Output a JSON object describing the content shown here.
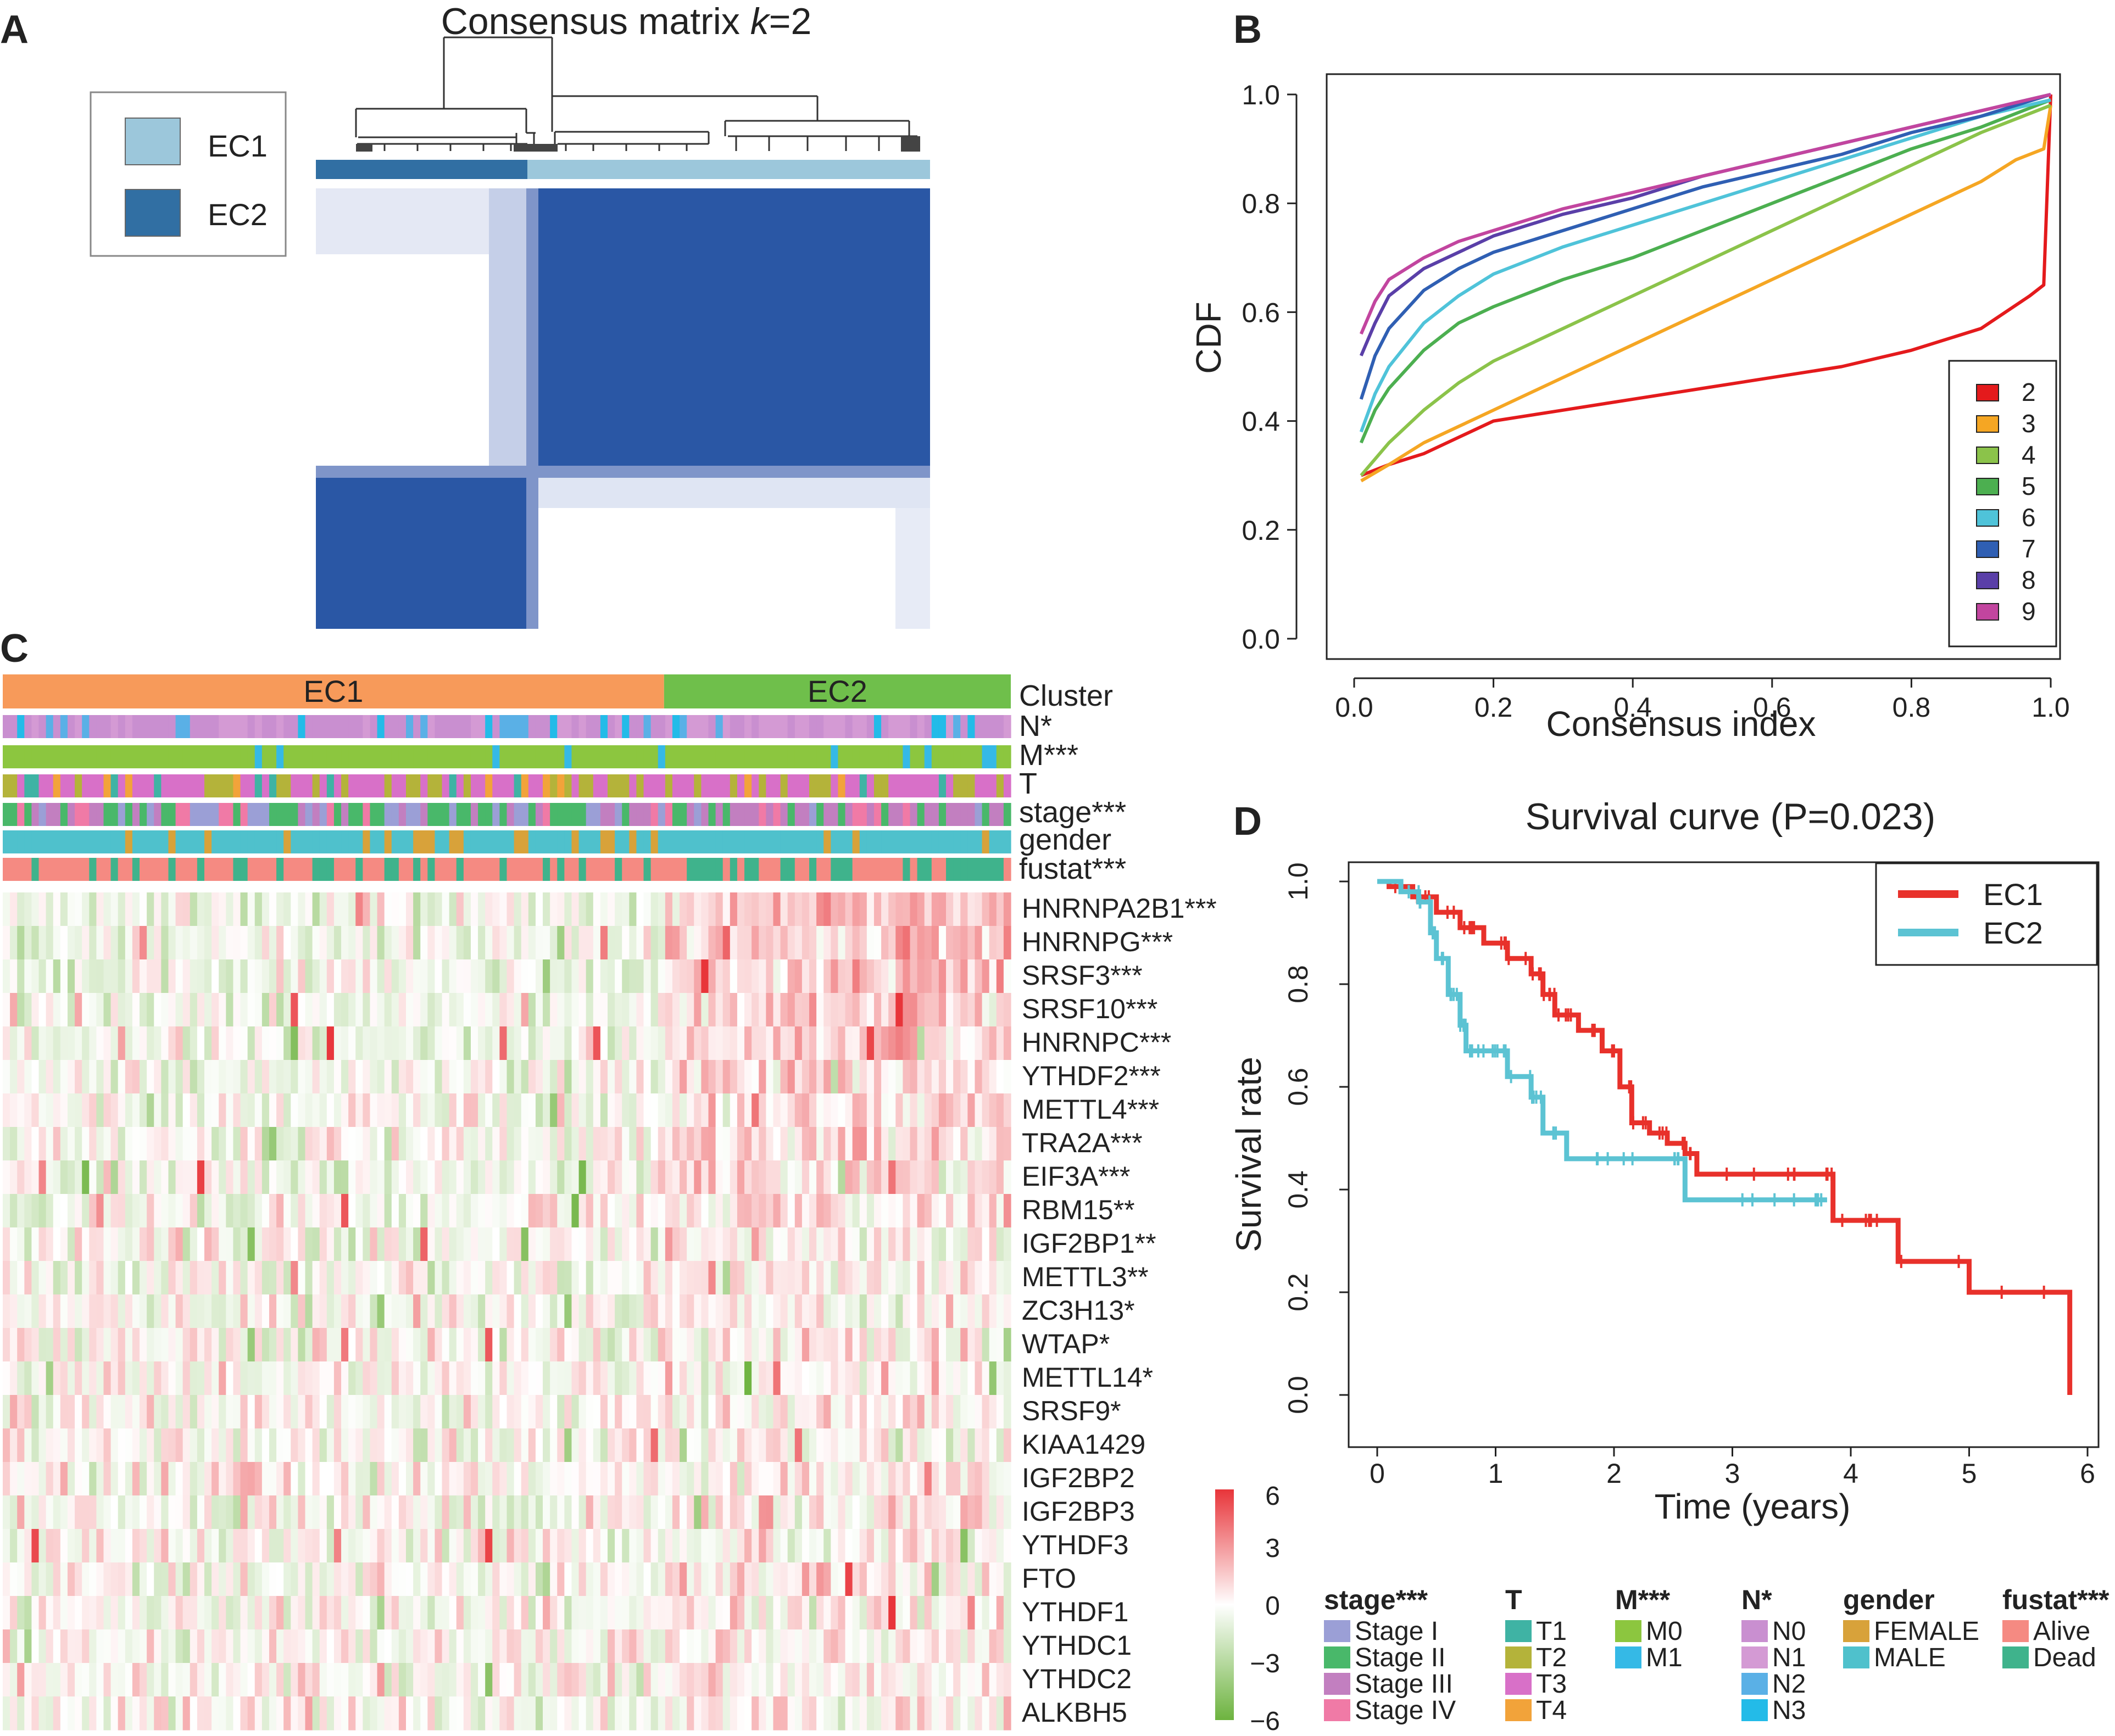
{
  "figure": {
    "panel_labels": [
      "A",
      "B",
      "C",
      "D"
    ]
  },
  "chart_data": [
    {
      "panel": "A",
      "type": "heatmap",
      "title_prefix": "Consensus matrix ",
      "title_k": "k",
      "title_suffix": "=2",
      "legend": [
        {
          "label": "EC1",
          "color": "#9cc7db"
        },
        {
          "label": "EC2",
          "color": "#316fa3"
        }
      ],
      "cluster_bar": [
        {
          "cluster": "EC2",
          "fraction": 0.345,
          "color": "#316fa3"
        },
        {
          "cluster": "EC1",
          "fraction": 0.655,
          "color": "#9cc7db"
        }
      ],
      "block_color": "#2a57a5"
    },
    {
      "panel": "B",
      "type": "line",
      "xlabel": "Consensus index",
      "ylabel": "CDF",
      "xlim": [
        0,
        1
      ],
      "ylim": [
        0,
        1
      ],
      "xticks": [
        "0.0",
        "0.2",
        "0.4",
        "0.6",
        "0.8",
        "1.0"
      ],
      "yticks": [
        "0.0",
        "0.2",
        "0.4",
        "0.6",
        "0.8",
        "1.0"
      ],
      "series": [
        {
          "name": "2",
          "color": "#e41a1c",
          "x": [
            0.01,
            0.05,
            0.1,
            0.15,
            0.2,
            0.3,
            0.4,
            0.5,
            0.6,
            0.7,
            0.8,
            0.9,
            0.97,
            0.99,
            1.0
          ],
          "y": [
            0.3,
            0.32,
            0.34,
            0.37,
            0.4,
            0.42,
            0.44,
            0.46,
            0.48,
            0.5,
            0.53,
            0.57,
            0.63,
            0.65,
            1.0
          ]
        },
        {
          "name": "3",
          "color": "#f5a623",
          "x": [
            0.01,
            0.05,
            0.1,
            0.15,
            0.2,
            0.3,
            0.4,
            0.5,
            0.6,
            0.7,
            0.8,
            0.9,
            0.95,
            0.99,
            1.0
          ],
          "y": [
            0.29,
            0.32,
            0.36,
            0.39,
            0.42,
            0.48,
            0.54,
            0.6,
            0.66,
            0.72,
            0.78,
            0.84,
            0.88,
            0.9,
            0.98
          ]
        },
        {
          "name": "4",
          "color": "#8bc34a",
          "x": [
            0.01,
            0.03,
            0.05,
            0.1,
            0.15,
            0.2,
            0.3,
            0.4,
            0.5,
            0.6,
            0.7,
            0.8,
            0.9,
            1.0
          ],
          "y": [
            0.3,
            0.33,
            0.36,
            0.42,
            0.47,
            0.51,
            0.57,
            0.63,
            0.69,
            0.75,
            0.81,
            0.87,
            0.93,
            0.98
          ]
        },
        {
          "name": "5",
          "color": "#4caf50",
          "x": [
            0.01,
            0.03,
            0.05,
            0.1,
            0.15,
            0.2,
            0.3,
            0.4,
            0.5,
            0.6,
            0.7,
            0.8,
            0.9,
            1.0
          ],
          "y": [
            0.36,
            0.42,
            0.46,
            0.53,
            0.58,
            0.61,
            0.66,
            0.7,
            0.75,
            0.8,
            0.85,
            0.9,
            0.94,
            0.99
          ]
        },
        {
          "name": "6",
          "color": "#4fc3d9",
          "x": [
            0.01,
            0.03,
            0.05,
            0.1,
            0.15,
            0.2,
            0.3,
            0.4,
            0.5,
            0.6,
            0.7,
            0.8,
            0.9,
            1.0
          ],
          "y": [
            0.38,
            0.45,
            0.5,
            0.58,
            0.63,
            0.67,
            0.72,
            0.76,
            0.8,
            0.84,
            0.88,
            0.92,
            0.96,
            0.99
          ]
        },
        {
          "name": "7",
          "color": "#2f5fb3",
          "x": [
            0.01,
            0.03,
            0.05,
            0.1,
            0.15,
            0.2,
            0.3,
            0.4,
            0.5,
            0.6,
            0.7,
            0.8,
            0.9,
            1.0
          ],
          "y": [
            0.44,
            0.52,
            0.57,
            0.64,
            0.68,
            0.71,
            0.75,
            0.79,
            0.83,
            0.86,
            0.89,
            0.93,
            0.96,
            1.0
          ]
        },
        {
          "name": "8",
          "color": "#5a3fa8",
          "x": [
            0.01,
            0.03,
            0.05,
            0.1,
            0.15,
            0.2,
            0.3,
            0.4,
            0.5,
            0.6,
            0.7,
            0.8,
            0.9,
            1.0
          ],
          "y": [
            0.52,
            0.58,
            0.63,
            0.68,
            0.71,
            0.74,
            0.78,
            0.81,
            0.85,
            0.88,
            0.91,
            0.94,
            0.97,
            1.0
          ]
        },
        {
          "name": "9",
          "color": "#c2459f",
          "x": [
            0.01,
            0.03,
            0.05,
            0.1,
            0.15,
            0.2,
            0.3,
            0.4,
            0.5,
            0.6,
            0.7,
            0.8,
            0.9,
            1.0
          ],
          "y": [
            0.56,
            0.62,
            0.66,
            0.7,
            0.73,
            0.75,
            0.79,
            0.82,
            0.85,
            0.88,
            0.91,
            0.94,
            0.97,
            1.0
          ]
        }
      ]
    },
    {
      "panel": "C",
      "type": "heatmap",
      "clusters": [
        {
          "label": "EC1",
          "fraction": 0.656,
          "color": "#f79a5a"
        },
        {
          "label": "EC2",
          "fraction": 0.344,
          "color": "#6fbf4b"
        }
      ],
      "annotation_rows": [
        "Cluster",
        "N*",
        "M***",
        "T",
        "stage***",
        "gender",
        "fustat***"
      ],
      "genes": [
        "HNRNPA2B1***",
        "HNRNPG***",
        "SRSF3***",
        "SRSF10***",
        "HNRNPC***",
        "YTHDF2***",
        "METTL4***",
        "TRA2A***",
        "EIF3A***",
        "RBM15**",
        "IGF2BP1**",
        "METTL3**",
        "ZC3H13*",
        "WTAP*",
        "METTL14*",
        "SRSF9*",
        "KIAA1429",
        "IGF2BP2",
        "IGF2BP3",
        "YTHDF3",
        "FTO",
        "YTHDF1",
        "YTHDC1",
        "YTHDC2",
        "ALKBH5"
      ],
      "colorbar": {
        "min": -6,
        "max": 6,
        "ticks": [
          "6",
          "3",
          "0",
          "−3",
          "−6"
        ],
        "low_color": "#6db33f",
        "mid_color": "#ffffff",
        "high_color": "#e8353a"
      },
      "legends": [
        {
          "title": "stage***",
          "items": [
            {
              "label": "Stage I",
              "color": "#9b9fd6"
            },
            {
              "label": "Stage II",
              "color": "#49b86a"
            },
            {
              "label": "Stage III",
              "color": "#c27fc0"
            },
            {
              "label": "Stage IV",
              "color": "#f07aa6"
            }
          ]
        },
        {
          "title": "T",
          "items": [
            {
              "label": "T1",
              "color": "#3fb3a4"
            },
            {
              "label": "T2",
              "color": "#b4b33a"
            },
            {
              "label": "T3",
              "color": "#d870c8"
            },
            {
              "label": "T4",
              "color": "#f2a33a"
            }
          ]
        },
        {
          "title": "M***",
          "items": [
            {
              "label": "M0",
              "color": "#8cc63f"
            },
            {
              "label": "M1",
              "color": "#35b9e6"
            }
          ]
        },
        {
          "title": "N*",
          "items": [
            {
              "label": "N0",
              "color": "#c98fd0"
            },
            {
              "label": "N1",
              "color": "#d49ad4"
            },
            {
              "label": "N2",
              "color": "#5ab0e6"
            },
            {
              "label": "N3",
              "color": "#23bbe8"
            }
          ]
        },
        {
          "title": "gender",
          "items": [
            {
              "label": "FEMALE",
              "color": "#d8a23a"
            },
            {
              "label": "MALE",
              "color": "#4fc1cc"
            }
          ]
        },
        {
          "title": "fustat***",
          "items": [
            {
              "label": "Alive",
              "color": "#f58a82"
            },
            {
              "label": "Dead",
              "color": "#3fb38c"
            }
          ]
        }
      ]
    },
    {
      "panel": "D",
      "type": "line",
      "title": "Survival curve (P=0.023)",
      "xlabel": "Time (years)",
      "ylabel": "Survival rate",
      "xlim": [
        0,
        6
      ],
      "ylim": [
        0,
        1
      ],
      "xticks": [
        "0",
        "1",
        "2",
        "3",
        "4",
        "5",
        "6"
      ],
      "yticks": [
        "0.0",
        "0.2",
        "0.4",
        "0.6",
        "0.8",
        "1.0"
      ],
      "series": [
        {
          "name": "EC1",
          "color": "#e8312b",
          "x": [
            0,
            0.1,
            0.3,
            0.5,
            0.7,
            0.9,
            1.1,
            1.3,
            1.4,
            1.5,
            1.7,
            1.9,
            2.05,
            2.15,
            2.3,
            2.45,
            2.6,
            2.7,
            3.75,
            3.85,
            4.4,
            5.0,
            5.85,
            5.85
          ],
          "y": [
            1.0,
            0.99,
            0.97,
            0.94,
            0.91,
            0.88,
            0.85,
            0.82,
            0.78,
            0.74,
            0.71,
            0.67,
            0.6,
            0.53,
            0.51,
            0.49,
            0.47,
            0.43,
            0.43,
            0.34,
            0.26,
            0.2,
            0.19,
            0.0
          ]
        },
        {
          "name": "EC2",
          "color": "#5cc3d3",
          "x": [
            0,
            0.2,
            0.35,
            0.45,
            0.5,
            0.6,
            0.7,
            0.75,
            0.9,
            1.0,
            1.1,
            1.3,
            1.4,
            1.6,
            2.5,
            2.6,
            3.7,
            3.8
          ],
          "y": [
            1.0,
            0.98,
            0.96,
            0.9,
            0.85,
            0.78,
            0.72,
            0.67,
            0.67,
            0.67,
            0.62,
            0.58,
            0.51,
            0.46,
            0.46,
            0.38,
            0.38,
            0.38
          ]
        }
      ]
    }
  ]
}
